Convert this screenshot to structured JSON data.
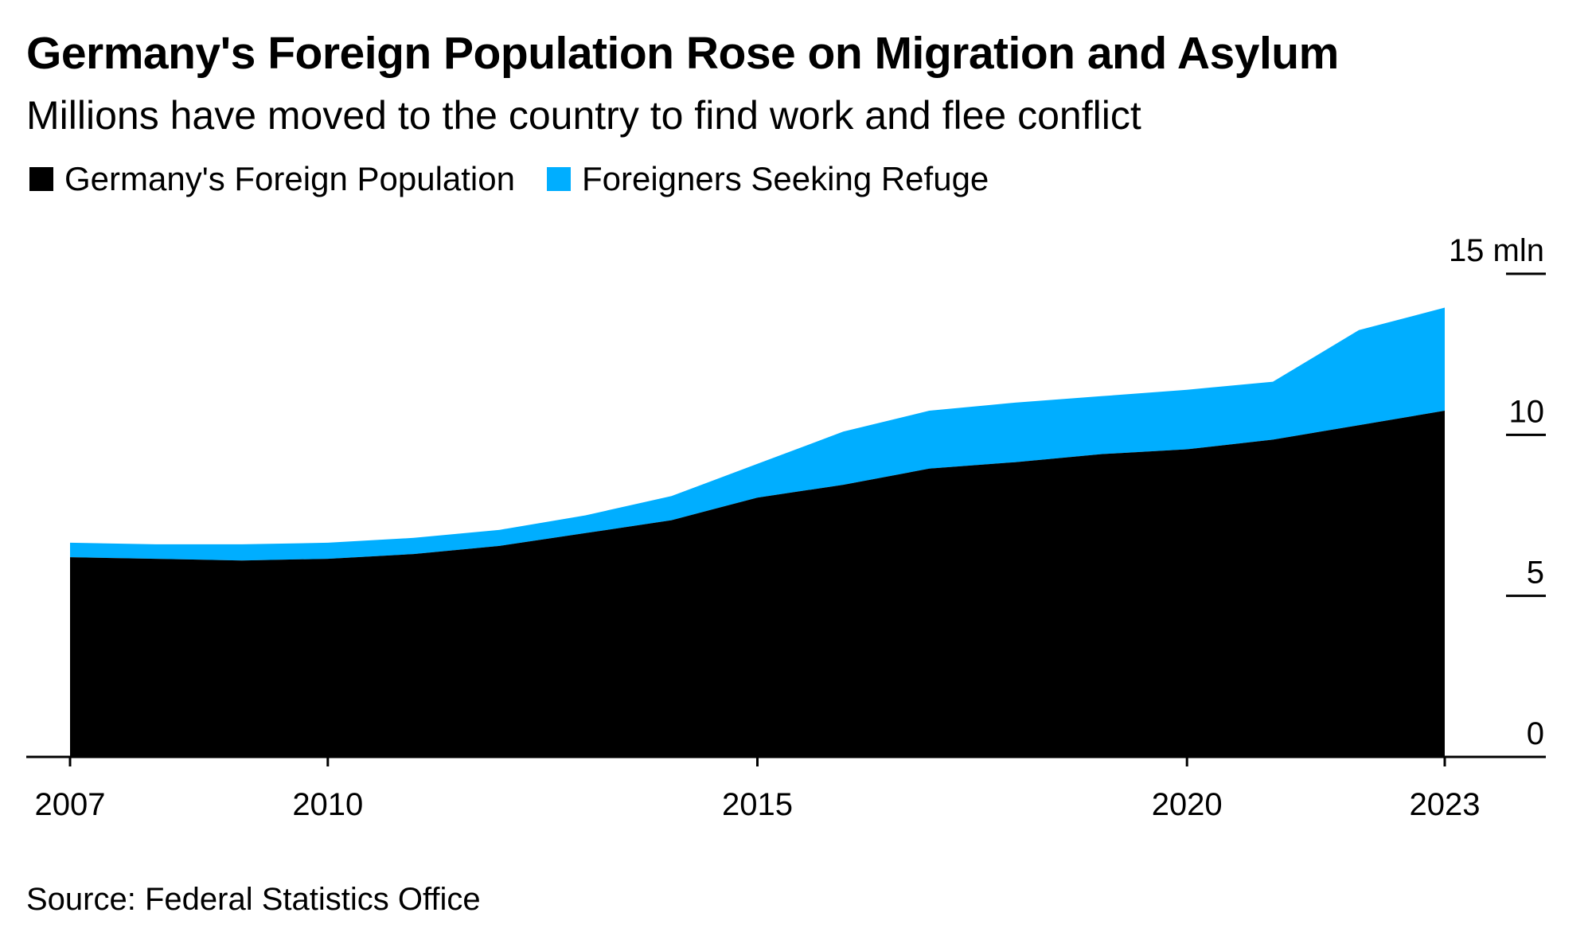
{
  "title": "Germany's Foreign Population Rose on Migration and Asylum",
  "subtitle": "Millions have moved to the country to find work and flee conflict",
  "source": "Source: Federal Statistics Office",
  "colors": {
    "foreign": "#000000",
    "refuge": "#00aeff"
  },
  "chart_data": {
    "type": "area",
    "stacked": true,
    "title": "Germany's Foreign Population Rose on Migration and Asylum",
    "x": [
      2007,
      2008,
      2009,
      2010,
      2011,
      2012,
      2013,
      2014,
      2015,
      2016,
      2017,
      2018,
      2019,
      2020,
      2021,
      2022,
      2023
    ],
    "series": [
      {
        "name": "Germany's Foreign Population",
        "values": [
          6.2,
          6.15,
          6.1,
          6.15,
          6.3,
          6.55,
          6.95,
          7.35,
          8.05,
          8.45,
          8.95,
          9.15,
          9.4,
          9.55,
          9.85,
          10.3,
          10.75
        ]
      },
      {
        "name": "Foreigners Seeking Refuge",
        "values": [
          0.45,
          0.45,
          0.5,
          0.5,
          0.5,
          0.5,
          0.55,
          0.75,
          1.05,
          1.65,
          1.8,
          1.85,
          1.8,
          1.85,
          1.8,
          2.95,
          3.2
        ]
      }
    ],
    "ylim": [
      0,
      15
    ],
    "yticks": [
      {
        "value": 0,
        "label": "0"
      },
      {
        "value": 5,
        "label": "5"
      },
      {
        "value": 10,
        "label": "10"
      },
      {
        "value": 15,
        "label": "15 mln"
      }
    ],
    "xticks": [
      2007,
      2010,
      2015,
      2020,
      2023
    ],
    "legend_position": "top-left",
    "grid": false
  }
}
